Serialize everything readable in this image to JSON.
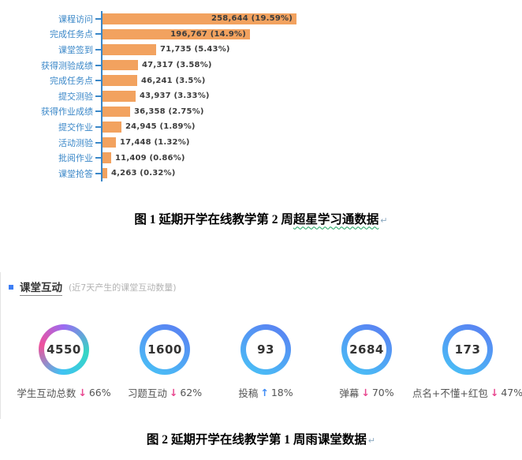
{
  "chart_data": {
    "type": "bar",
    "orientation": "horizontal",
    "title": "",
    "xlabel": "",
    "ylabel": "",
    "grid": false,
    "legend": false,
    "bar_color": "#f2a25f",
    "axis_color": "#3a87c8",
    "xlim": [
      0,
      258644
    ],
    "categories": [
      "课程访问",
      "完成任务点",
      "课堂签到",
      "获得测验成绩",
      "完成任务点",
      "提交测验",
      "获得作业成绩",
      "提交作业",
      "活动测验",
      "批阅作业",
      "课堂抢答"
    ],
    "values": [
      258644,
      196767,
      71735,
      47317,
      46241,
      43937,
      36358,
      24945,
      17448,
      11409,
      4263
    ],
    "value_labels": [
      "258,644 (19.59%)",
      "196,767 (14.9%)",
      "71,735 (5.43%)",
      "47,317 (3.58%)",
      "46,241 (3.5%)",
      "43,937 (3.33%)",
      "36,358 (2.75%)",
      "24,945 (1.89%)",
      "17,448 (1.32%)",
      "11,409 (0.86%)",
      "4,263 (0.32%)"
    ]
  },
  "caption1": {
    "prefix": "图 1 延期开学在线教学第 2 周",
    "flagged": "超星学习通数据",
    "mark": "↵"
  },
  "panel": {
    "title": "课堂互动",
    "subtitle": "(近7天产生的课堂互动数量)",
    "bullet_color": "#3d7ef5",
    "arrow_colors": {
      "down": "#e8468f",
      "up": "#3d8bf5"
    },
    "stats": [
      {
        "value": "4550",
        "label": "学生互动总数",
        "direction": "down",
        "percent": "66%",
        "ring": "multicolor"
      },
      {
        "value": "1600",
        "label": "习题互动",
        "direction": "down",
        "percent": "62%",
        "ring": "blue"
      },
      {
        "value": "93",
        "label": "投稿",
        "direction": "up",
        "percent": "18%",
        "ring": "blue"
      },
      {
        "value": "2684",
        "label": "弹幕",
        "direction": "down",
        "percent": "70%",
        "ring": "blue"
      },
      {
        "value": "173",
        "label": "点名+不懂+红包",
        "direction": "down",
        "percent": "47%",
        "ring": "blue"
      }
    ]
  },
  "caption2": {
    "text": "图 2 延期开学在线教学第 1 周雨课堂数据",
    "mark": "↵"
  }
}
